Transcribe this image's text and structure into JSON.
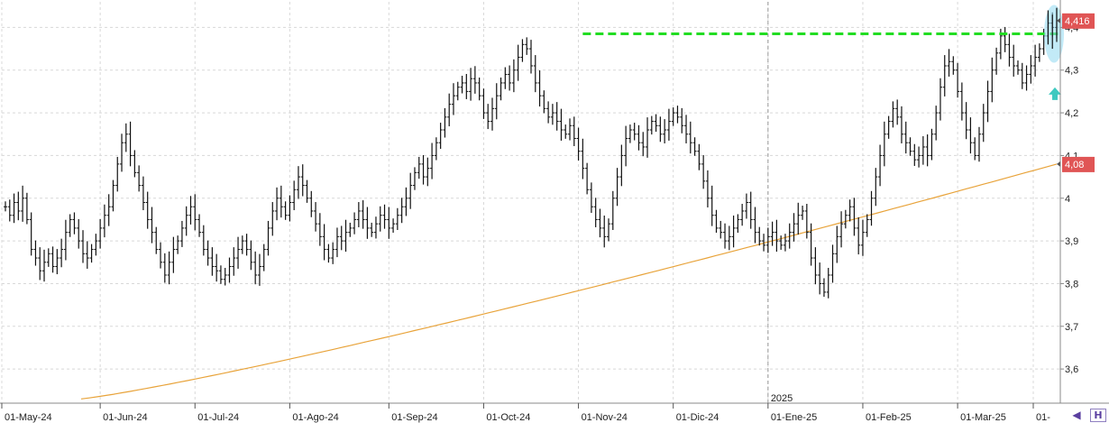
{
  "chart_data": {
    "type": "ohlc",
    "y_ticks": [
      "3,6",
      "3,7",
      "3,8",
      "3,9",
      "4",
      "4,1",
      "4,2",
      "4,3",
      "4,4"
    ],
    "ylim": [
      3.52,
      4.46
    ],
    "x_labels": [
      "01-May-24",
      "01-Jun-24",
      "01-Jul-24",
      "01-Ago-24",
      "01-Sep-24",
      "01-Oct-24",
      "01-Nov-24",
      "01-Dic-24",
      "01-Ene-25",
      "01-Feb-25",
      "01-Mar-25",
      "01-"
    ],
    "year_marker": "2025",
    "grid": true,
    "price_series_closes": [
      3.98,
      3.96,
      3.99,
      3.97,
      4.0,
      3.95,
      3.88,
      3.86,
      3.83,
      3.85,
      3.87,
      3.84,
      3.86,
      3.88,
      3.92,
      3.95,
      3.93,
      3.9,
      3.87,
      3.86,
      3.88,
      3.9,
      3.93,
      3.96,
      3.98,
      4.03,
      4.08,
      4.13,
      4.15,
      4.1,
      4.06,
      4.03,
      3.99,
      3.95,
      3.92,
      3.88,
      3.85,
      3.82,
      3.85,
      3.88,
      3.9,
      3.93,
      3.96,
      3.98,
      3.95,
      3.92,
      3.88,
      3.86,
      3.84,
      3.83,
      3.81,
      3.82,
      3.84,
      3.86,
      3.88,
      3.9,
      3.88,
      3.85,
      3.82,
      3.84,
      3.88,
      3.93,
      3.97,
      4.0,
      3.98,
      3.96,
      3.99,
      4.02,
      4.05,
      4.03,
      4.0,
      3.97,
      3.94,
      3.91,
      3.88,
      3.86,
      3.88,
      3.91,
      3.9,
      3.92,
      3.93,
      3.95,
      3.97,
      3.95,
      3.93,
      3.92,
      3.94,
      3.96,
      3.95,
      3.93,
      3.94,
      3.96,
      3.98,
      4.0,
      4.03,
      4.06,
      4.08,
      4.05,
      4.07,
      4.1,
      4.13,
      4.16,
      4.19,
      4.22,
      4.24,
      4.26,
      4.27,
      4.25,
      4.28,
      4.27,
      4.24,
      4.2,
      4.18,
      4.21,
      4.24,
      4.27,
      4.29,
      4.27,
      4.3,
      4.33,
      4.36,
      4.35,
      4.31,
      4.27,
      4.24,
      4.21,
      4.19,
      4.2,
      4.18,
      4.16,
      4.15,
      4.17,
      4.14,
      4.11,
      4.07,
      4.02,
      3.98,
      3.95,
      3.93,
      3.91,
      3.94,
      4.0,
      4.05,
      4.1,
      4.14,
      4.16,
      4.15,
      4.13,
      4.12,
      4.16,
      4.18,
      4.17,
      4.15,
      4.16,
      4.18,
      4.2,
      4.19,
      4.17,
      4.15,
      4.13,
      4.11,
      4.08,
      4.04,
      4.0,
      3.96,
      3.93,
      3.92,
      3.9,
      3.91,
      3.93,
      3.95,
      3.97,
      3.99,
      3.95,
      3.92,
      3.9,
      3.89,
      3.91,
      3.92,
      3.9,
      3.89,
      3.9,
      3.92,
      3.94,
      3.96,
      3.97,
      3.92,
      3.86,
      3.82,
      3.8,
      3.78,
      3.82,
      3.87,
      3.91,
      3.94,
      3.96,
      3.98,
      3.93,
      3.89,
      3.92,
      3.95,
      4.0,
      4.05,
      4.1,
      4.15,
      4.18,
      4.21,
      4.19,
      4.15,
      4.13,
      4.11,
      4.09,
      4.1,
      4.12,
      4.1,
      4.15,
      4.2,
      4.26,
      4.31,
      4.32,
      4.3,
      4.25,
      4.2,
      4.16,
      4.13,
      4.1,
      4.15,
      4.2,
      4.25,
      4.3,
      4.34,
      4.38,
      4.36,
      4.33,
      4.31,
      4.3,
      4.27,
      4.29,
      4.31,
      4.33,
      4.35,
      4.38,
      4.41,
      4.4,
      4.416
    ],
    "moving_average_start": 3.53,
    "moving_average_end": 4.08,
    "last_price": "4,416",
    "ma_value": "4,08",
    "resistance_level": 4.385,
    "colors": {
      "bars": "#111111",
      "moving_average": "#e8a33a",
      "resistance": "#22dd22",
      "last_price_badge": "#e05555",
      "ma_badge": "#e05555",
      "highlight": "#8fd8f0",
      "arrow": "#3ec9c0"
    }
  },
  "ui": {
    "scroll_left_label": "◀",
    "h_button_label": "H"
  }
}
